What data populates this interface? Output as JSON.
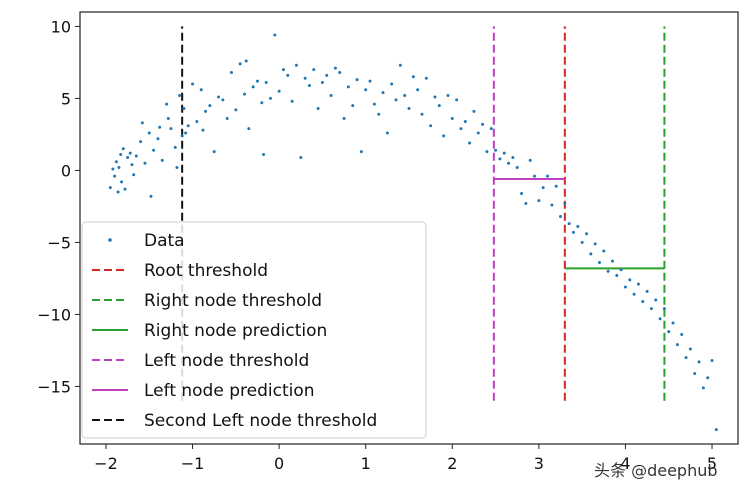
{
  "chart_data": {
    "type": "scatter",
    "title": "",
    "xlabel": "",
    "ylabel": "",
    "xlim": [
      -2.3,
      5.3
    ],
    "ylim": [
      -19,
      11
    ],
    "x_ticks": [
      -2,
      -1,
      0,
      1,
      2,
      3,
      4,
      5
    ],
    "y_ticks": [
      10,
      5,
      0,
      -5,
      -10,
      -15
    ],
    "grid": false,
    "legend_position": "lower-left",
    "data_color": "#1f77b4",
    "data_points": [
      [
        -1.95,
        -1.2
      ],
      [
        -1.92,
        0.1
      ],
      [
        -1.9,
        -0.4
      ],
      [
        -1.88,
        0.6
      ],
      [
        -1.86,
        -1.5
      ],
      [
        -1.85,
        0.2
      ],
      [
        -1.83,
        1.1
      ],
      [
        -1.82,
        -0.8
      ],
      [
        -1.8,
        1.5
      ],
      [
        -1.78,
        -1.3
      ],
      [
        -1.75,
        0.9
      ],
      [
        -1.72,
        1.2
      ],
      [
        -1.7,
        0.4
      ],
      [
        -1.68,
        -0.3
      ],
      [
        -1.65,
        1.0
      ],
      [
        -1.6,
        2.0
      ],
      [
        -1.58,
        3.3
      ],
      [
        -1.55,
        0.5
      ],
      [
        -1.5,
        2.6
      ],
      [
        -1.48,
        -1.8
      ],
      [
        -1.45,
        1.4
      ],
      [
        -1.4,
        2.2
      ],
      [
        -1.38,
        3.0
      ],
      [
        -1.35,
        0.7
      ],
      [
        -1.3,
        4.6
      ],
      [
        -1.28,
        3.6
      ],
      [
        -1.25,
        2.9
      ],
      [
        -1.2,
        1.6
      ],
      [
        -1.18,
        0.2
      ],
      [
        -1.15,
        5.2
      ],
      [
        -1.12,
        2.4
      ],
      [
        -1.1,
        4.3
      ],
      [
        -1.08,
        2.6
      ],
      [
        -1.05,
        3.1
      ],
      [
        -1.0,
        6.0
      ],
      [
        -0.95,
        3.4
      ],
      [
        -0.9,
        5.6
      ],
      [
        -0.88,
        2.8
      ],
      [
        -0.85,
        4.1
      ],
      [
        -0.8,
        4.5
      ],
      [
        -0.75,
        1.3
      ],
      [
        -0.7,
        5.1
      ],
      [
        -0.65,
        4.9
      ],
      [
        -0.6,
        3.6
      ],
      [
        -0.55,
        6.8
      ],
      [
        -0.5,
        4.2
      ],
      [
        -0.45,
        7.4
      ],
      [
        -0.4,
        5.3
      ],
      [
        -0.38,
        7.6
      ],
      [
        -0.35,
        2.9
      ],
      [
        -0.3,
        5.8
      ],
      [
        -0.25,
        6.2
      ],
      [
        -0.2,
        4.7
      ],
      [
        -0.18,
        1.1
      ],
      [
        -0.15,
        6.1
      ],
      [
        -0.1,
        5.0
      ],
      [
        -0.05,
        9.4
      ],
      [
        0.0,
        5.5
      ],
      [
        0.05,
        7.0
      ],
      [
        0.1,
        6.6
      ],
      [
        0.15,
        4.8
      ],
      [
        0.2,
        7.3
      ],
      [
        0.25,
        0.9
      ],
      [
        0.3,
        6.4
      ],
      [
        0.35,
        5.9
      ],
      [
        0.4,
        7.0
      ],
      [
        0.45,
        4.3
      ],
      [
        0.5,
        6.1
      ],
      [
        0.55,
        6.6
      ],
      [
        0.6,
        5.2
      ],
      [
        0.65,
        7.1
      ],
      [
        0.7,
        6.8
      ],
      [
        0.75,
        3.6
      ],
      [
        0.8,
        5.8
      ],
      [
        0.85,
        4.5
      ],
      [
        0.9,
        6.3
      ],
      [
        0.95,
        1.3
      ],
      [
        1.0,
        5.6
      ],
      [
        1.05,
        6.2
      ],
      [
        1.1,
        4.6
      ],
      [
        1.15,
        3.9
      ],
      [
        1.2,
        5.4
      ],
      [
        1.25,
        2.6
      ],
      [
        1.3,
        6.0
      ],
      [
        1.35,
        4.9
      ],
      [
        1.4,
        7.3
      ],
      [
        1.45,
        5.2
      ],
      [
        1.5,
        4.3
      ],
      [
        1.55,
        6.5
      ],
      [
        1.6,
        5.6
      ],
      [
        1.65,
        3.9
      ],
      [
        1.7,
        6.4
      ],
      [
        1.75,
        3.1
      ],
      [
        1.8,
        5.1
      ],
      [
        1.85,
        4.5
      ],
      [
        1.9,
        2.4
      ],
      [
        1.95,
        5.2
      ],
      [
        2.0,
        3.6
      ],
      [
        2.05,
        4.9
      ],
      [
        2.1,
        2.9
      ],
      [
        2.15,
        3.4
      ],
      [
        2.2,
        1.9
      ],
      [
        2.25,
        4.1
      ],
      [
        2.3,
        2.6
      ],
      [
        2.35,
        3.2
      ],
      [
        2.4,
        1.3
      ],
      [
        2.45,
        2.9
      ],
      [
        2.5,
        1.4
      ],
      [
        2.55,
        0.8
      ],
      [
        2.6,
        1.2
      ],
      [
        2.65,
        0.5
      ],
      [
        2.7,
        0.9
      ],
      [
        2.75,
        0.2
      ],
      [
        2.8,
        -1.6
      ],
      [
        2.85,
        -2.3
      ],
      [
        2.9,
        0.7
      ],
      [
        2.95,
        -0.4
      ],
      [
        3.0,
        -2.1
      ],
      [
        3.05,
        -1.2
      ],
      [
        3.1,
        -0.4
      ],
      [
        3.15,
        -2.4
      ],
      [
        3.2,
        -1.1
      ],
      [
        3.25,
        -3.2
      ],
      [
        3.3,
        -2.3
      ],
      [
        3.35,
        -3.7
      ],
      [
        3.4,
        -4.3
      ],
      [
        3.45,
        -3.9
      ],
      [
        3.5,
        -5.0
      ],
      [
        3.55,
        -4.4
      ],
      [
        3.6,
        -5.8
      ],
      [
        3.65,
        -5.1
      ],
      [
        3.7,
        -6.4
      ],
      [
        3.75,
        -5.6
      ],
      [
        3.8,
        -7.0
      ],
      [
        3.85,
        -6.3
      ],
      [
        3.9,
        -7.3
      ],
      [
        3.95,
        -6.9
      ],
      [
        4.0,
        -8.1
      ],
      [
        4.05,
        -7.6
      ],
      [
        4.1,
        -8.6
      ],
      [
        4.15,
        -7.9
      ],
      [
        4.2,
        -9.1
      ],
      [
        4.25,
        -8.4
      ],
      [
        4.3,
        -9.6
      ],
      [
        4.35,
        -9.0
      ],
      [
        4.4,
        -10.3
      ],
      [
        4.45,
        -9.6
      ],
      [
        4.5,
        -11.2
      ],
      [
        4.55,
        -10.6
      ],
      [
        4.6,
        -12.1
      ],
      [
        4.65,
        -11.4
      ],
      [
        4.7,
        -13.0
      ],
      [
        4.75,
        -12.4
      ],
      [
        4.8,
        -14.1
      ],
      [
        4.85,
        -13.3
      ],
      [
        4.9,
        -15.1
      ],
      [
        4.95,
        -14.4
      ],
      [
        5.0,
        -13.2
      ],
      [
        5.05,
        -18.0
      ]
    ],
    "lines": [
      {
        "label": "Root threshold",
        "kind": "vertical",
        "x": 3.3,
        "y": [
          -16,
          10
        ],
        "color": "#d62728",
        "dashed": true
      },
      {
        "label": "Right node threshold",
        "kind": "vertical",
        "x": 4.45,
        "y": [
          -16,
          10
        ],
        "color": "#2ca02c",
        "dashed": true
      },
      {
        "label": "Right node prediction",
        "kind": "horizontal",
        "y": -6.8,
        "x": [
          3.3,
          4.45
        ],
        "color": "#2ca02c",
        "dashed": false
      },
      {
        "label": "Left node threshold",
        "kind": "vertical",
        "x": 2.48,
        "y": [
          -16,
          10
        ],
        "color": "#bf3fbf",
        "dashed": true
      },
      {
        "label": "Left node prediction",
        "kind": "horizontal",
        "y": -0.6,
        "x": [
          2.48,
          3.3
        ],
        "color": "#bf3fbf",
        "dashed": false
      },
      {
        "label": "Second Left node threshold",
        "kind": "vertical",
        "x": -1.12,
        "y": [
          -16,
          10
        ],
        "color": "#111111",
        "dashed": true
      }
    ],
    "legend": [
      {
        "label": "Data",
        "marker": "dot",
        "color": "#1f77b4"
      },
      {
        "label": "Root threshold",
        "marker": "dash",
        "color": "#d62728"
      },
      {
        "label": "Right node threshold",
        "marker": "dash",
        "color": "#2ca02c"
      },
      {
        "label": "Right node prediction",
        "marker": "solid",
        "color": "#2ca02c"
      },
      {
        "label": "Left node threshold",
        "marker": "dash",
        "color": "#bf3fbf"
      },
      {
        "label": "Left node prediction",
        "marker": "solid",
        "color": "#bf3fbf"
      },
      {
        "label": "Second Left node threshold",
        "marker": "dash",
        "color": "#111111"
      }
    ]
  },
  "watermark": "头条 @deephub"
}
